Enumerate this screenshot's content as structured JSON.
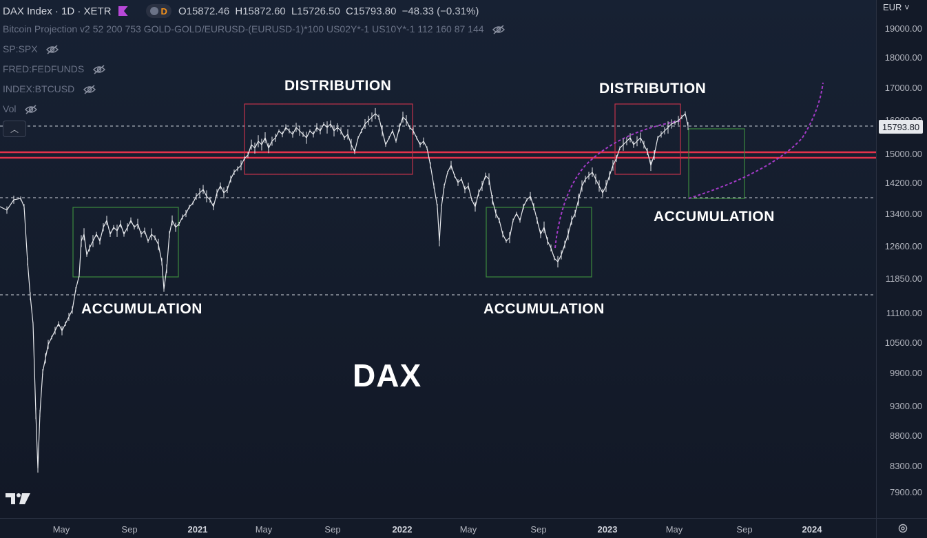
{
  "header": {
    "symbol": "DAX Index · 1D · XETR",
    "badge": "D",
    "ohlc": [
      {
        "k": "O",
        "v": "15872.46"
      },
      {
        "k": "H",
        "v": "15872.60"
      },
      {
        "k": "L",
        "v": "15726.50"
      },
      {
        "k": "C",
        "v": "15793.80"
      }
    ],
    "change": "−48.33 (−0.31%)"
  },
  "indicators": [
    "Bitcoin Projection v2 52 200 753 GOLD-GOLD/EURUSD-(EURUSD-1)*100 US02Y*-1 US10Y*-1 112 160 87 144",
    "SP:SPX",
    "FRED:FEDFUNDS",
    "INDEX:BTCUSD",
    "Vol"
  ],
  "currency": "EUR",
  "current_price": "15793.80",
  "price_axis": [
    "19000.00",
    "18000.00",
    "17000.00",
    "16000.00",
    "15000.00",
    "14200.00",
    "13400.00",
    "12600.00",
    "11850.00",
    "11100.00",
    "10500.00",
    "9900.00",
    "9300.00",
    "8800.00",
    "8300.00",
    "7900.00"
  ],
  "time_axis": [
    {
      "label": "May",
      "bold": false
    },
    {
      "label": "Sep",
      "bold": false
    },
    {
      "label": "2021",
      "bold": true
    },
    {
      "label": "May",
      "bold": false
    },
    {
      "label": "Sep",
      "bold": false
    },
    {
      "label": "2022",
      "bold": true
    },
    {
      "label": "May",
      "bold": false
    },
    {
      "label": "Sep",
      "bold": false
    },
    {
      "label": "2023",
      "bold": true
    },
    {
      "label": "May",
      "bold": false
    },
    {
      "label": "Sep",
      "bold": false
    },
    {
      "label": "2024",
      "bold": true
    }
  ],
  "annotations": {
    "distribution_1": "DISTRIBUTION",
    "distribution_2": "DISTRIBUTION",
    "accumulation_1": "ACCUMULATION",
    "accumulation_2": "ACCUMULATION",
    "accumulation_3": "ACCUMULATION",
    "title": "DAX"
  },
  "colors": {
    "distribution_box": "#c2334a",
    "accumulation_box": "#3c8a3e",
    "resistance_line": "#e5334b",
    "projection_curve": "#a43bc8"
  }
}
